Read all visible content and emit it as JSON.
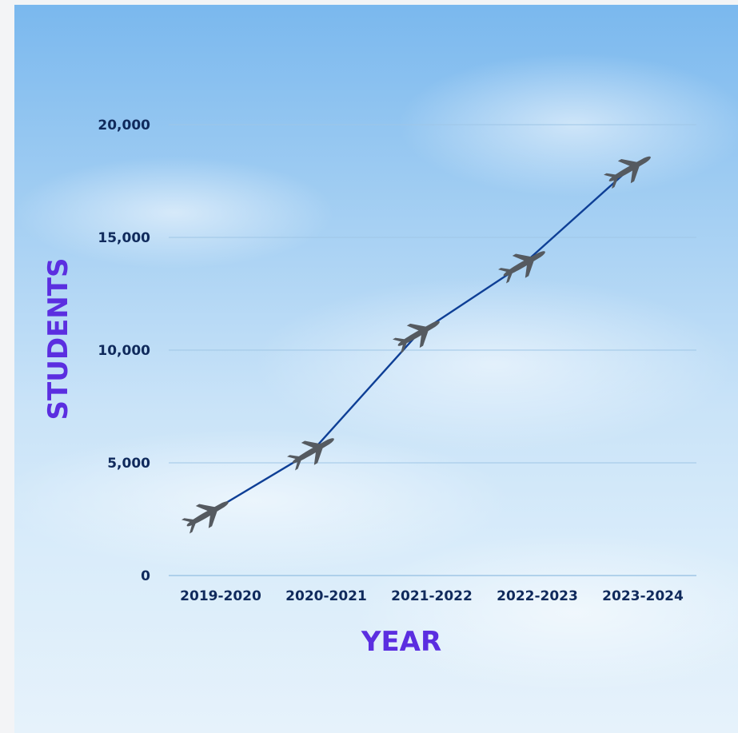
{
  "chart_data": {
    "type": "line",
    "categories": [
      "2019-2020",
      "2020-2021",
      "2021-2022",
      "2022-2023",
      "2023-2024"
    ],
    "series": [
      {
        "values": [
          2700,
          5500,
          10700,
          13800,
          18000
        ]
      }
    ],
    "xlabel": "YEAR",
    "ylabel": "STUDENTS",
    "ylim": [
      0,
      20000
    ],
    "yticks": [
      "0",
      "5,000",
      "10,000",
      "15,000",
      "20,000"
    ],
    "grid": true,
    "marker": "airplane-icon",
    "colors": {
      "line": "#0e3f96",
      "grid": "#9fc6e6",
      "tick_text": "#102a5c",
      "axis_title": "#5b2ee0",
      "marker": "#555a60"
    }
  }
}
